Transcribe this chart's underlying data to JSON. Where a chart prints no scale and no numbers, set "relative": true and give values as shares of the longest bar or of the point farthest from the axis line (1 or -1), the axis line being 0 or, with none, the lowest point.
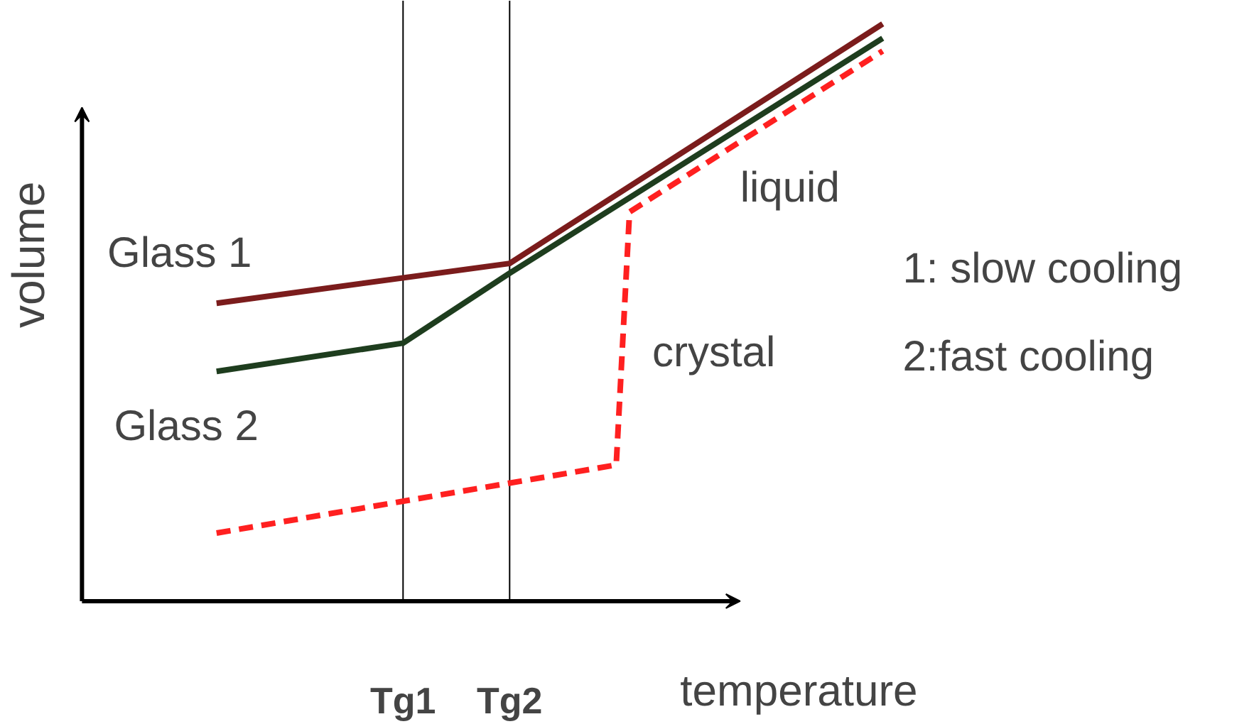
{
  "chart_data": {
    "type": "line",
    "relative": true,
    "xlabel": "temperature",
    "ylabel": "volume",
    "categories": [
      null,
      null,
      null,
      null,
      null,
      null,
      null,
      null,
      null,
      null,
      null,
      null,
      null,
      null,
      "Tg1",
      null,
      null,
      null,
      null,
      null,
      null,
      null,
      "Tg2",
      null,
      null,
      null,
      null,
      null,
      null,
      null,
      null,
      null,
      null,
      null,
      null,
      null,
      null,
      null,
      null,
      null,
      null,
      null,
      null,
      null,
      null,
      null,
      null,
      null,
      null,
      null,
      null
    ],
    "ref_lines": [
      {
        "axis": "x",
        "value": "Tg1",
        "color": "#000000"
      },
      {
        "axis": "x",
        "value": "Tg2",
        "color": "#000000"
      }
    ],
    "series": [
      {
        "color": "#7b1c1c",
        "values": [
          0.516,
          null,
          null,
          null,
          null,
          null,
          null,
          null,
          null,
          null,
          null,
          null,
          null,
          null,
          null,
          null,
          null,
          null,
          null,
          null,
          null,
          null,
          0.585,
          null,
          null,
          null,
          null,
          null,
          null,
          null,
          null,
          null,
          null,
          null,
          null,
          null,
          null,
          null,
          null,
          null,
          null,
          null,
          null,
          null,
          null,
          null,
          null,
          null,
          null,
          null,
          1
        ]
      },
      {
        "color": "#1e3d1e",
        "values": [
          0.398,
          null,
          null,
          null,
          null,
          null,
          null,
          null,
          null,
          null,
          null,
          null,
          null,
          null,
          0.447,
          null,
          null,
          null,
          null,
          null,
          null,
          null,
          0.568,
          null,
          null,
          null,
          null,
          null,
          null,
          null,
          null,
          null,
          null,
          null,
          null,
          null,
          null,
          null,
          null,
          null,
          null,
          null,
          null,
          null,
          null,
          null,
          null,
          null,
          null,
          null,
          0.975
        ]
      },
      {
        "color": "#ff2020",
        "line_style": "dashed",
        "values": [
          0.118,
          null,
          null,
          null,
          null,
          null,
          null,
          null,
          null,
          null,
          null,
          null,
          null,
          null,
          null,
          null,
          null,
          null,
          null,
          null,
          null,
          null,
          null,
          null,
          null,
          null,
          null,
          null,
          null,
          null,
          0.236,
          0.674,
          null,
          null,
          null,
          null,
          null,
          null,
          null,
          null,
          null,
          null,
          null,
          null,
          null,
          null,
          null,
          null,
          null,
          null,
          0.953
        ]
      }
    ],
    "annotations": [
      "Glass 1",
      "Glass 2",
      "liquid",
      "crystal",
      "1: slow cooling",
      "2:fast cooling"
    ]
  }
}
